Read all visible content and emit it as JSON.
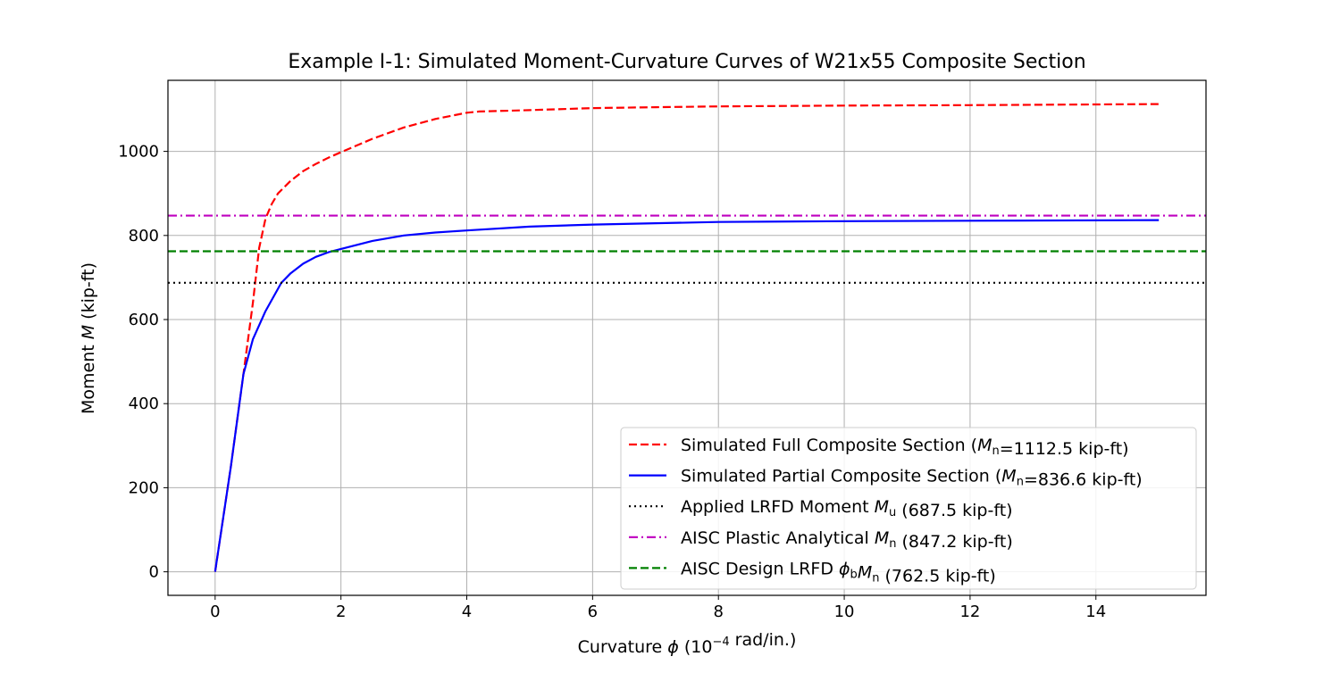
{
  "chart_data": {
    "type": "line",
    "title": "Example I-1: Simulated Moment-Curvature Curves of W21x55 Composite Section",
    "xlabel_parts": [
      "Curvature ",
      "ϕ",
      " (10",
      "−4",
      " rad/in.)"
    ],
    "ylabel_parts": [
      "Moment ",
      "M",
      " (kip-ft)"
    ],
    "xlim": [
      -0.75,
      15.75
    ],
    "ylim": [
      -56,
      1169
    ],
    "xticks": [
      0,
      2,
      4,
      6,
      8,
      10,
      12,
      14
    ],
    "yticks": [
      0,
      200,
      400,
      600,
      800,
      1000
    ],
    "grid": true,
    "legend_position": "lower-right",
    "series": [
      {
        "key": "full",
        "legend_parts": [
          [
            "Simulated Full Composite Section (",
            ""
          ],
          [
            "M",
            "i"
          ],
          [
            "n",
            "sub"
          ],
          [
            "=1112.5 kip-ft)",
            ""
          ]
        ],
        "color": "#ff0000",
        "style": "dashed",
        "x": [
          0,
          0.25,
          0.45,
          0.6,
          0.7,
          0.8,
          0.9,
          1.0,
          1.2,
          1.4,
          1.6,
          1.8,
          2.0,
          2.5,
          3.0,
          3.5,
          4.0,
          4.2,
          5.0,
          6.0,
          7.0,
          8.0,
          10.0,
          12.0,
          15.0
        ],
        "y": [
          0,
          250,
          470,
          640,
          770,
          840,
          875,
          900,
          930,
          953,
          970,
          985,
          998,
          1030,
          1057,
          1077,
          1092,
          1095,
          1098,
          1103,
          1105,
          1107,
          1109,
          1110,
          1112.5
        ]
      },
      {
        "key": "partial",
        "legend_parts": [
          [
            "Simulated Partial Composite Section (",
            ""
          ],
          [
            "M",
            "i"
          ],
          [
            "n",
            "sub"
          ],
          [
            "=836.6 kip-ft)",
            ""
          ]
        ],
        "color": "#0000ff",
        "style": "solid",
        "x": [
          0,
          0.25,
          0.45,
          0.6,
          0.8,
          1.05,
          1.2,
          1.4,
          1.6,
          1.8,
          2.0,
          2.5,
          3.0,
          3.5,
          4.0,
          5.0,
          6.0,
          7.0,
          8.0,
          10.0,
          12.0,
          15.0
        ],
        "y": [
          0,
          250,
          470,
          553,
          620,
          687,
          710,
          733,
          749,
          760,
          768,
          787,
          800,
          807,
          812,
          821,
          826,
          829,
          832,
          834,
          835,
          836.6
        ]
      },
      {
        "key": "mu",
        "legend_parts": [
          [
            "Applied LRFD Moment ",
            ""
          ],
          [
            "M",
            "i"
          ],
          [
            "u",
            "sub"
          ],
          [
            " (687.5 kip-ft)",
            ""
          ]
        ],
        "color": "#000000",
        "style": "dotted",
        "value": 687.5
      },
      {
        "key": "mn",
        "legend_parts": [
          [
            "AISC Plastic Analytical ",
            ""
          ],
          [
            "M",
            "i"
          ],
          [
            "n",
            "sub"
          ],
          [
            " (847.2 kip-ft)",
            ""
          ]
        ],
        "color": "#bf00bf",
        "style": "dashdot",
        "value": 847.2
      },
      {
        "key": "phimn",
        "legend_parts": [
          [
            "AISC Design LRFD ",
            ""
          ],
          [
            "ϕ",
            "i"
          ],
          [
            "b",
            "sub"
          ],
          [
            "M",
            "i"
          ],
          [
            "n",
            "sub"
          ],
          [
            " (762.5 kip-ft)",
            ""
          ]
        ],
        "color": "#008000",
        "style": "dashed",
        "value": 762.5
      }
    ]
  }
}
